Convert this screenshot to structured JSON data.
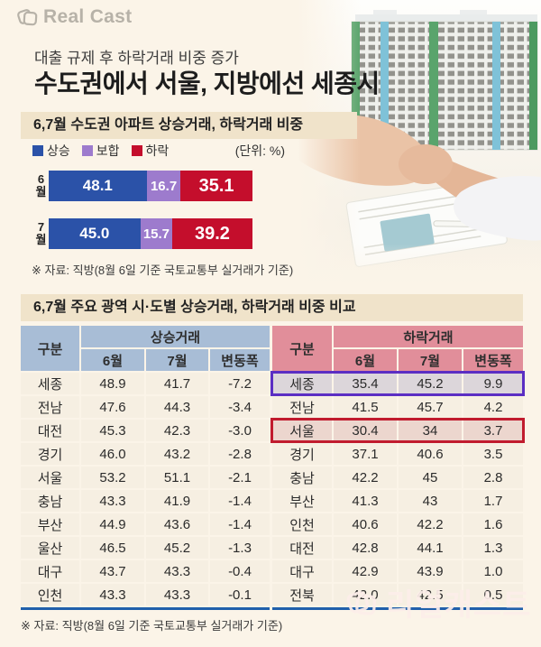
{
  "brand": {
    "logo_text": "Real Cast",
    "watermark_text": "리얼캐스트"
  },
  "header": {
    "kicker": "대출 규제 후 하락거래 비중 증가",
    "title": "수도권에서 서울, 지방에선 세종시"
  },
  "bar_section": {
    "heading": "6,7월 수도권 아파트 상승거래, 하락거래 비중",
    "unit_label": "(단위: %)",
    "source": "※ 자료: 직방(8월 6일 기준 국토교통부 실거래가 기준)"
  },
  "table_section": {
    "heading": "6,7월 주요 광역 시·도별 상승거래, 하락거래 비중 비교",
    "source": "※ 자료: 직방(8월 6일 기준 국토교통부 실거래가 기준)"
  },
  "colors": {
    "page_bg": "#fbf4e8",
    "section_bg": "#f0e3ca",
    "up": "#2b52a8",
    "flat": "#9d7bcd",
    "down": "#c40e2c",
    "up_header": "#a8bdd6",
    "down_header": "#e18e9a",
    "row_bg": "#f6efe2",
    "footline": "#2060ab"
  },
  "highlights": {
    "down_table": [
      {
        "row_index": 0,
        "region": "세종",
        "border": "#5b2ec3",
        "bg": "#dcd6da"
      },
      {
        "row_index": 2,
        "region": "서울",
        "border": "#c11b2e",
        "bg": "#ecd6ce"
      }
    ]
  },
  "chart_data": [
    {
      "type": "bar",
      "stacked": true,
      "orientation": "horizontal",
      "title": "6,7월 수도권 아파트 상승거래, 하락거래 비중",
      "unit": "%",
      "xlim": [
        0,
        100
      ],
      "categories": [
        "6월",
        "7월"
      ],
      "series": [
        {
          "key": "up",
          "name": "상승",
          "color": "#2b52a8",
          "values": [
            48.1,
            45.0
          ]
        },
        {
          "key": "flat",
          "name": "보합",
          "color": "#9d7bcd",
          "values": [
            16.7,
            15.7
          ]
        },
        {
          "key": "down",
          "name": "하락",
          "color": "#c40e2c",
          "values": [
            35.1,
            39.2
          ]
        }
      ],
      "legend_position": "top"
    },
    {
      "type": "table",
      "title": "상승거래",
      "columns": [
        "구분",
        "6월",
        "7월",
        "변동폭"
      ],
      "rows": [
        [
          "세종",
          "48.9",
          "41.7",
          "-7.2"
        ],
        [
          "전남",
          "47.6",
          "44.3",
          "-3.4"
        ],
        [
          "대전",
          "45.3",
          "42.3",
          "-3.0"
        ],
        [
          "경기",
          "46.0",
          "43.2",
          "-2.8"
        ],
        [
          "서울",
          "53.2",
          "51.1",
          "-2.1"
        ],
        [
          "충남",
          "43.3",
          "41.9",
          "-1.4"
        ],
        [
          "부산",
          "44.9",
          "43.6",
          "-1.4"
        ],
        [
          "울산",
          "46.5",
          "45.2",
          "-1.3"
        ],
        [
          "대구",
          "43.7",
          "43.3",
          "-0.4"
        ],
        [
          "인천",
          "43.3",
          "43.3",
          "-0.1"
        ]
      ]
    },
    {
      "type": "table",
      "title": "하락거래",
      "columns": [
        "구분",
        "6월",
        "7월",
        "변동폭"
      ],
      "rows": [
        [
          "세종",
          "35.4",
          "45.2",
          "9.9"
        ],
        [
          "전남",
          "41.5",
          "45.7",
          "4.2"
        ],
        [
          "서울",
          "30.4",
          "34",
          "3.7"
        ],
        [
          "경기",
          "37.1",
          "40.6",
          "3.5"
        ],
        [
          "충남",
          "42.2",
          "45",
          "2.8"
        ],
        [
          "부산",
          "41.3",
          "43",
          "1.7"
        ],
        [
          "인천",
          "40.6",
          "42.2",
          "1.6"
        ],
        [
          "대전",
          "42.8",
          "44.1",
          "1.3"
        ],
        [
          "대구",
          "42.9",
          "43.9",
          "1.0"
        ],
        [
          "전북",
          "42.0",
          "42.5",
          "0.5"
        ]
      ]
    }
  ]
}
